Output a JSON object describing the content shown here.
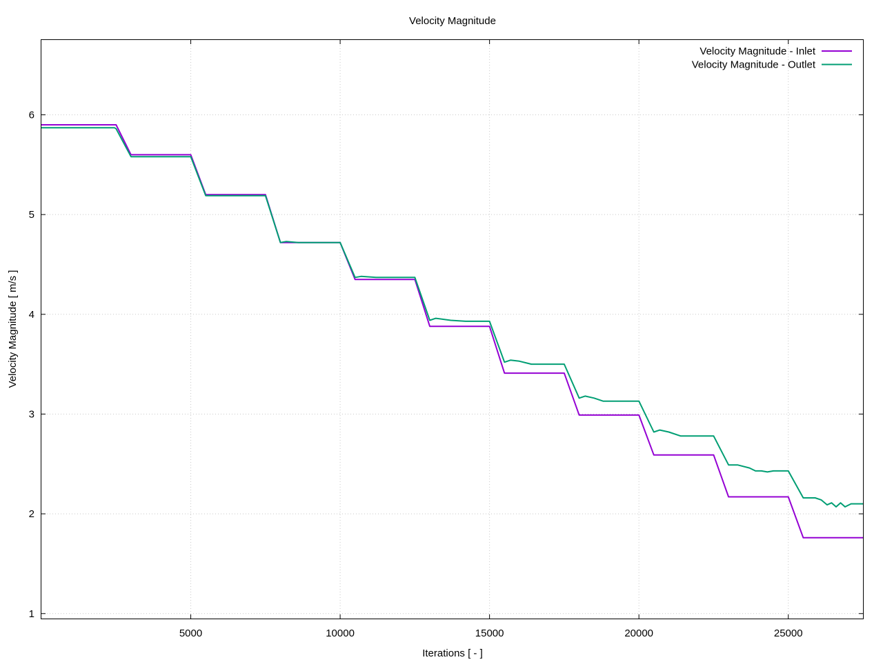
{
  "chart_data": {
    "type": "line",
    "title": "Velocity Magnitude",
    "xlabel": "Iterations [ - ]",
    "ylabel": "Velocity Magnitude [ m/s ]",
    "xlim": [
      0,
      27500
    ],
    "ylim": [
      0.95,
      6.75
    ],
    "xticks": [
      5000,
      10000,
      15000,
      20000,
      25000
    ],
    "xtick_labels": [
      "5000",
      "10000",
      "15000",
      "20000",
      "25000"
    ],
    "yticks": [
      1,
      2,
      3,
      4,
      5,
      6
    ],
    "ytick_labels": [
      "1",
      "2",
      "3",
      "4",
      "5",
      "6"
    ],
    "grid": true,
    "legend_position": "top-right",
    "series": [
      {
        "name": "Velocity Magnitude - Inlet",
        "color": "#9400d3",
        "points": [
          [
            0,
            5.9
          ],
          [
            2500,
            5.9
          ],
          [
            3000,
            5.6
          ],
          [
            5000,
            5.6
          ],
          [
            5500,
            5.2
          ],
          [
            7500,
            5.2
          ],
          [
            8000,
            4.72
          ],
          [
            10000,
            4.72
          ],
          [
            10500,
            4.35
          ],
          [
            12500,
            4.35
          ],
          [
            13000,
            3.88
          ],
          [
            15000,
            3.88
          ],
          [
            15500,
            3.41
          ],
          [
            17500,
            3.41
          ],
          [
            18000,
            2.99
          ],
          [
            20000,
            2.99
          ],
          [
            20500,
            2.59
          ],
          [
            22500,
            2.59
          ],
          [
            23000,
            2.17
          ],
          [
            25000,
            2.17
          ],
          [
            25500,
            1.76
          ],
          [
            27500,
            1.76
          ]
        ]
      },
      {
        "name": "Velocity Magnitude - Outlet",
        "color": "#009e73",
        "points": [
          [
            0,
            5.87
          ],
          [
            2450,
            5.87
          ],
          [
            2500,
            5.86
          ],
          [
            3000,
            5.58
          ],
          [
            3500,
            5.58
          ],
          [
            5000,
            5.58
          ],
          [
            5500,
            5.19
          ],
          [
            6000,
            5.19
          ],
          [
            7500,
            5.19
          ],
          [
            8000,
            4.72
          ],
          [
            8200,
            4.73
          ],
          [
            8600,
            4.72
          ],
          [
            10000,
            4.72
          ],
          [
            10500,
            4.37
          ],
          [
            10700,
            4.38
          ],
          [
            11200,
            4.37
          ],
          [
            12500,
            4.37
          ],
          [
            13000,
            3.94
          ],
          [
            13200,
            3.96
          ],
          [
            13700,
            3.94
          ],
          [
            14200,
            3.93
          ],
          [
            15000,
            3.93
          ],
          [
            15500,
            3.52
          ],
          [
            15700,
            3.54
          ],
          [
            16000,
            3.53
          ],
          [
            16400,
            3.5
          ],
          [
            17500,
            3.5
          ],
          [
            18000,
            3.16
          ],
          [
            18200,
            3.18
          ],
          [
            18500,
            3.16
          ],
          [
            18800,
            3.13
          ],
          [
            20000,
            3.13
          ],
          [
            20500,
            2.82
          ],
          [
            20700,
            2.84
          ],
          [
            21000,
            2.82
          ],
          [
            21400,
            2.78
          ],
          [
            21800,
            2.78
          ],
          [
            22500,
            2.78
          ],
          [
            23000,
            2.49
          ],
          [
            23300,
            2.49
          ],
          [
            23700,
            2.46
          ],
          [
            23900,
            2.43
          ],
          [
            24100,
            2.43
          ],
          [
            24300,
            2.42
          ],
          [
            24500,
            2.43
          ],
          [
            25000,
            2.43
          ],
          [
            25500,
            2.16
          ],
          [
            25900,
            2.16
          ],
          [
            26100,
            2.14
          ],
          [
            26300,
            2.09
          ],
          [
            26450,
            2.11
          ],
          [
            26600,
            2.07
          ],
          [
            26750,
            2.11
          ],
          [
            26900,
            2.07
          ],
          [
            27100,
            2.1
          ],
          [
            27500,
            2.1
          ]
        ]
      }
    ]
  }
}
